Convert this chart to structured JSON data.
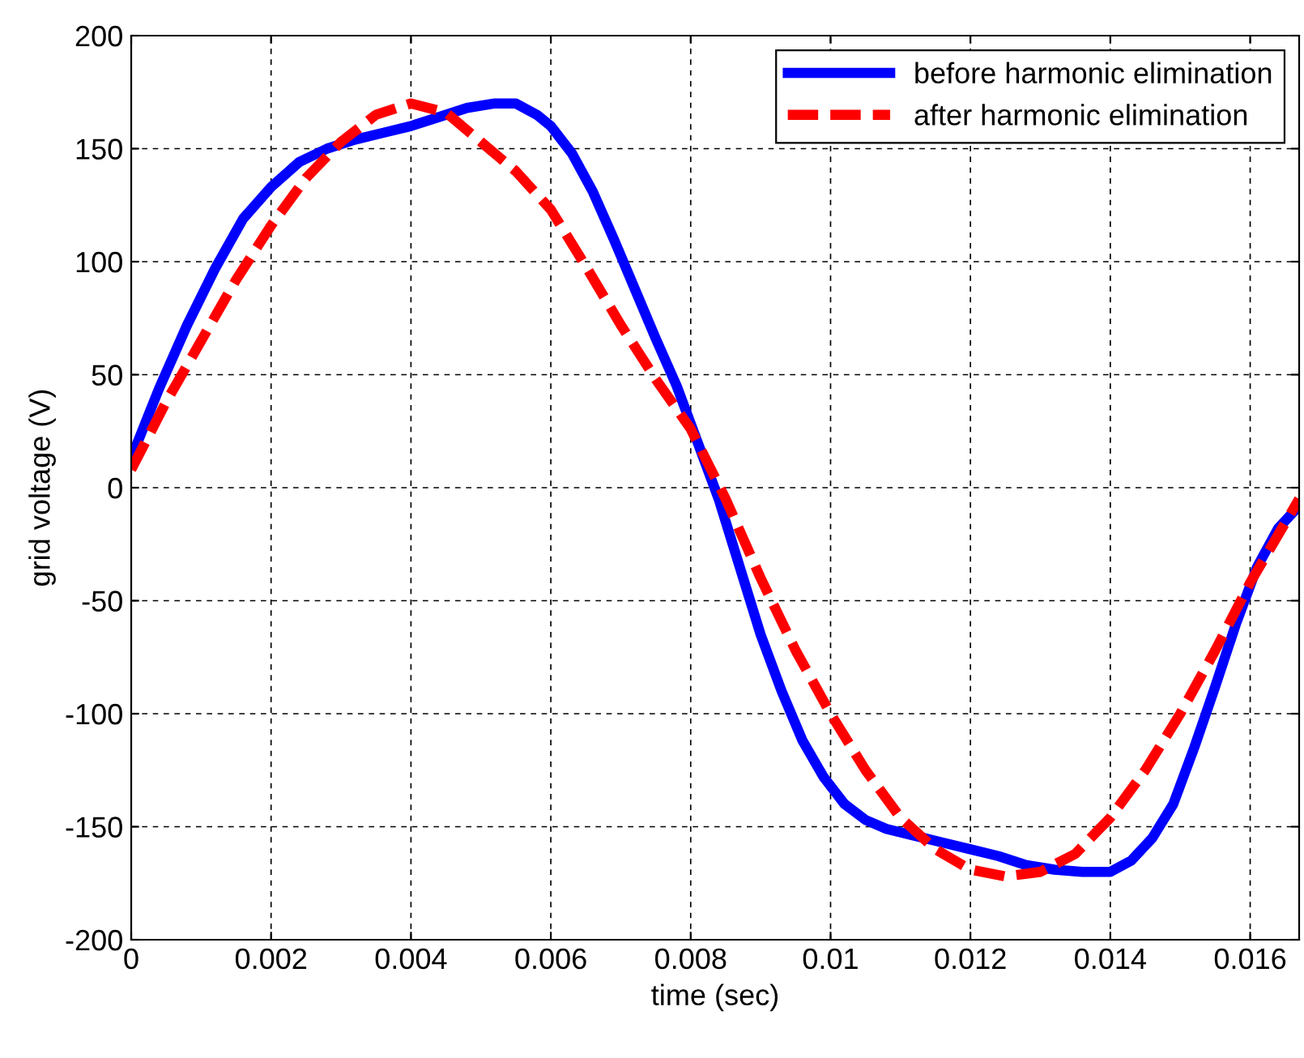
{
  "chart_data": {
    "type": "line",
    "xlabel": "time (sec)",
    "ylabel": "grid voltage (V)",
    "xlim": [
      0,
      0.0167
    ],
    "xticks": [
      0,
      0.002,
      0.004,
      0.006,
      0.008,
      0.01,
      0.012,
      0.014,
      0.016
    ],
    "ylim": [
      -200,
      200
    ],
    "yticks": [
      -200,
      -150,
      -100,
      -50,
      0,
      50,
      100,
      150,
      200
    ],
    "grid": true,
    "legend": "top right",
    "series": [
      {
        "name": "before harmonic elimination",
        "color": "#0000ff",
        "line_style": "solid",
        "x": [
          0,
          0.0004,
          0.0008,
          0.0012,
          0.0016,
          0.002,
          0.0024,
          0.0028,
          0.0032,
          0.0036,
          0.004,
          0.0044,
          0.0048,
          0.0052,
          0.0055,
          0.0058,
          0.006,
          0.0063,
          0.0066,
          0.0069,
          0.0072,
          0.0075,
          0.0078,
          0.0081,
          0.0084,
          0.0087,
          0.009,
          0.0093,
          0.0096,
          0.0099,
          0.0102,
          0.0105,
          0.0108,
          0.0112,
          0.0116,
          0.012,
          0.0124,
          0.0128,
          0.0132,
          0.0136,
          0.014,
          0.0143,
          0.0146,
          0.0149,
          0.0152,
          0.0155,
          0.0158,
          0.0161,
          0.0164,
          0.0167
        ],
        "values": [
          13,
          44,
          72,
          97,
          119,
          133,
          144,
          150,
          154,
          157,
          160,
          164,
          168,
          170,
          170,
          165,
          160,
          148,
          131,
          110,
          88,
          66,
          45,
          20,
          -5,
          -35,
          -65,
          -90,
          -112,
          -128,
          -140,
          -147,
          -151,
          -154,
          -157,
          -160,
          -163,
          -167,
          -169,
          -170,
          -170,
          -165,
          -155,
          -140,
          -115,
          -88,
          -60,
          -35,
          -18,
          -8
        ]
      },
      {
        "name": "after harmonic elimination",
        "color": "#ff0000",
        "line_style": "dashed",
        "x": [
          0,
          0.0005,
          0.001,
          0.0015,
          0.002,
          0.0025,
          0.003,
          0.0035,
          0.004,
          0.0045,
          0.005,
          0.0055,
          0.006,
          0.0065,
          0.007,
          0.0075,
          0.008,
          0.0085,
          0.009,
          0.0095,
          0.01,
          0.0105,
          0.011,
          0.0115,
          0.012,
          0.0125,
          0.013,
          0.0135,
          0.014,
          0.0145,
          0.015,
          0.0155,
          0.016,
          0.0167
        ],
        "values": [
          8,
          38,
          65,
          92,
          116,
          137,
          153,
          165,
          170,
          166,
          153,
          140,
          123,
          98,
          72,
          48,
          26,
          -5,
          -40,
          -72,
          -100,
          -125,
          -146,
          -160,
          -169,
          -172,
          -170,
          -162,
          -146,
          -125,
          -100,
          -72,
          -42,
          -5
        ]
      }
    ]
  }
}
